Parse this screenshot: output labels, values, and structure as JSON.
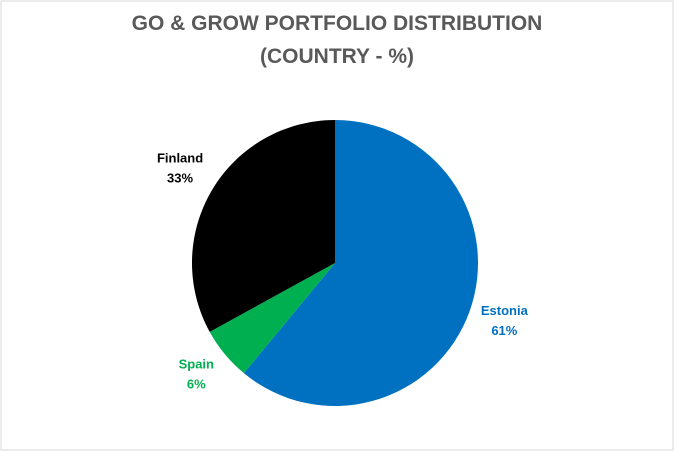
{
  "chart_data": {
    "type": "pie",
    "title": [
      "GO & GROW PORTFOLIO DISTRIBUTION",
      "(COUNTRY - %)"
    ],
    "categories": [
      "Estonia",
      "Spain",
      "Finland"
    ],
    "values": [
      61,
      6,
      33
    ],
    "value_labels": [
      "61%",
      "6%",
      "33%"
    ],
    "colors": [
      "#0070c0",
      "#00b050",
      "#000000"
    ]
  }
}
